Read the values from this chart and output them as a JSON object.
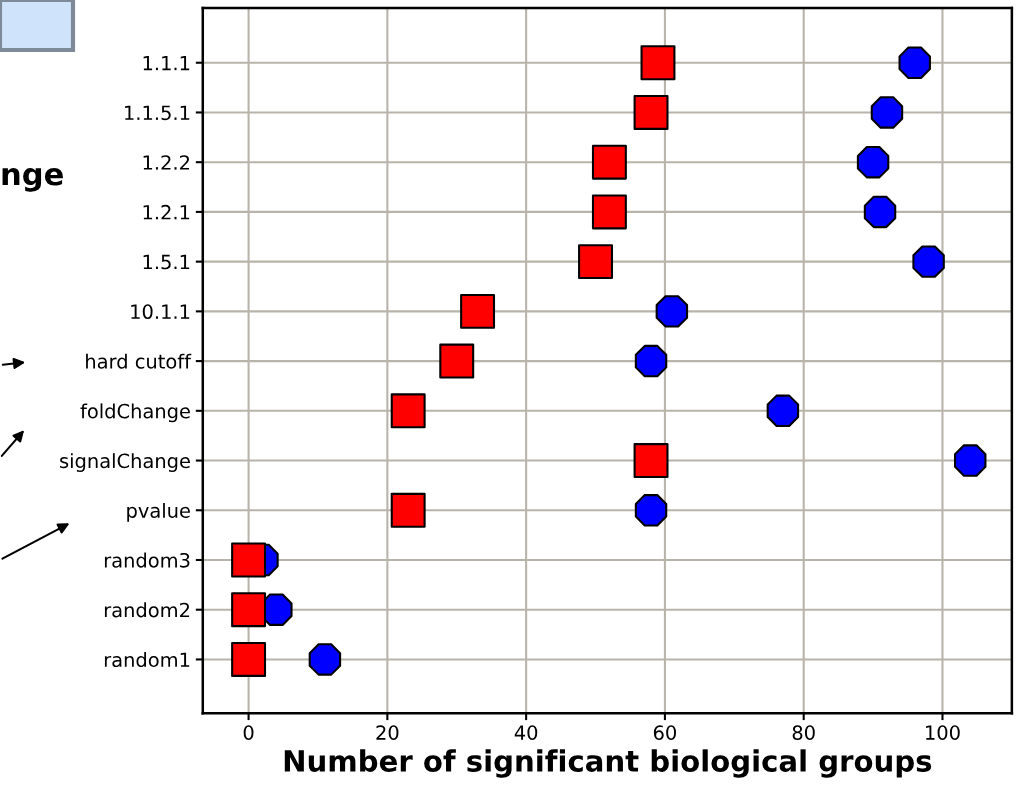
{
  "chart_data": {
    "type": "scatter",
    "orientation": "horizontal",
    "xlabel": "Number of significant biological groups",
    "categories": [
      "1.1.1",
      "1.1.5.1",
      "1.2.2",
      "1.2.1",
      "1.5.1",
      "10.1.1",
      "hard cutoff",
      "foldChange",
      "signalChange",
      "pvalue",
      "random3",
      "random2",
      "random1"
    ],
    "series": [
      {
        "color": "#0000ff",
        "marker": "circle",
        "values": [
          96,
          92,
          90,
          91,
          98,
          61,
          58,
          77,
          104,
          58,
          2,
          4,
          11
        ]
      },
      {
        "color": "#ff0000",
        "marker": "square",
        "values": [
          59,
          58,
          52,
          52,
          50,
          33,
          30,
          23,
          58,
          23,
          0,
          0,
          0
        ]
      }
    ],
    "xlim": [
      -6.6,
      110
    ],
    "xticks": [
      0,
      20,
      40,
      60,
      80,
      100
    ],
    "grid": true,
    "annotations": [
      "nge"
    ]
  }
}
